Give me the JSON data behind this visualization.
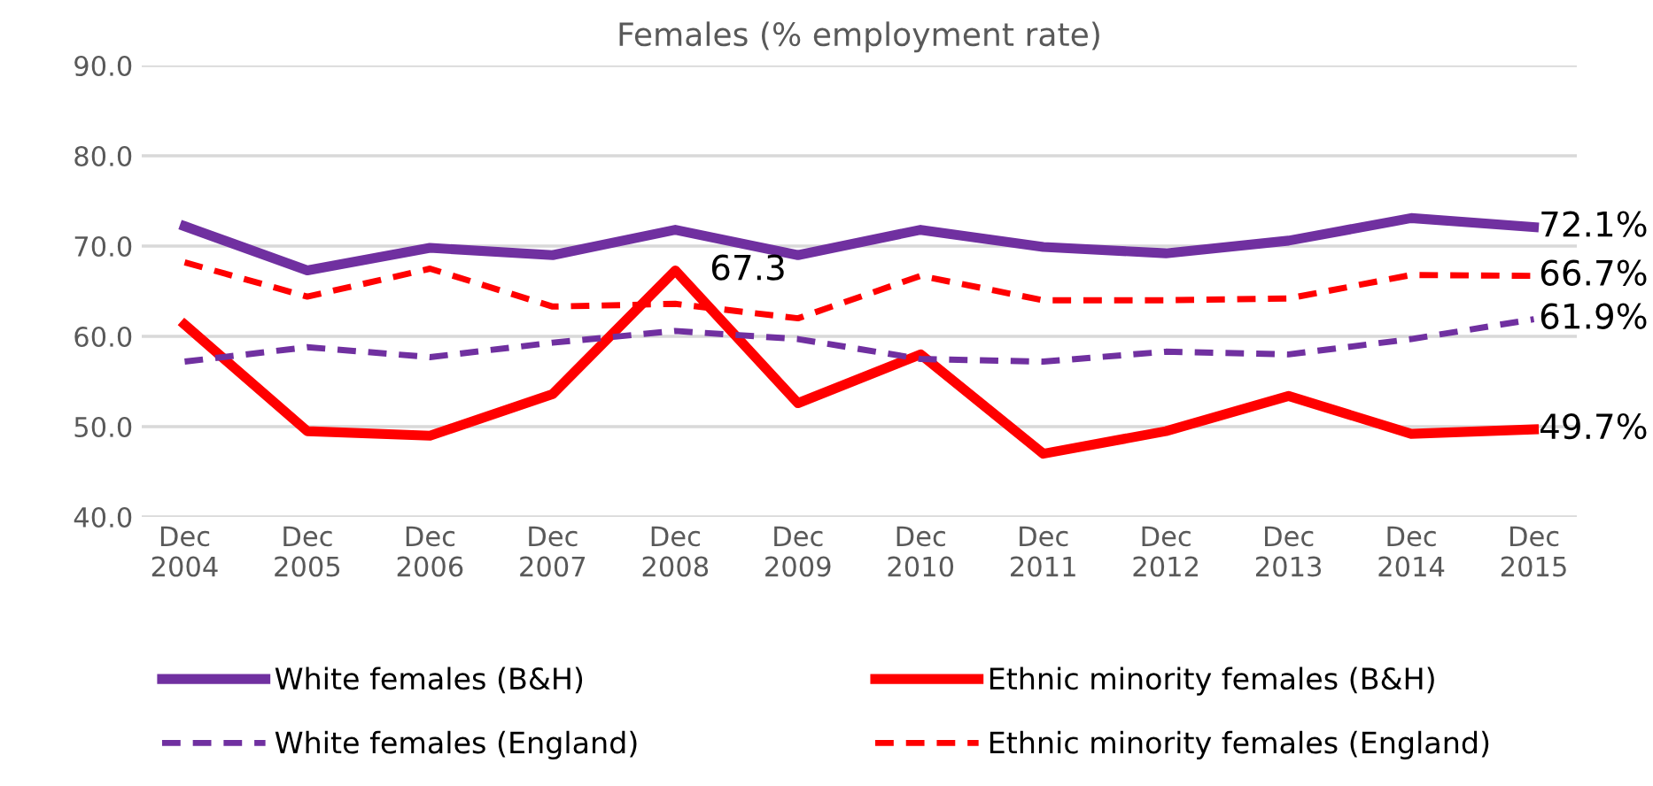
{
  "chart_data": {
    "type": "line",
    "title": "Females (% employment rate)",
    "categories": [
      "Dec\n2004",
      "Dec\n2005",
      "Dec\n2006",
      "Dec\n2007",
      "Dec\n2008",
      "Dec\n2009",
      "Dec\n2010",
      "Dec\n2011",
      "Dec\n2012",
      "Dec\n2013",
      "Dec\n2014",
      "Dec\n2015"
    ],
    "series": [
      {
        "name": "White females (B&H)",
        "color": "#7030a0",
        "line_style": "solid",
        "values": [
          72.2,
          67.3,
          69.8,
          69.0,
          71.8,
          69.0,
          71.8,
          69.9,
          69.2,
          70.6,
          73.1,
          72.1
        ],
        "value_labels": [
          null,
          null,
          null,
          null,
          null,
          null,
          null,
          null,
          null,
          null,
          null,
          "72.1%"
        ]
      },
      {
        "name": "Ethnic minority females (B&H)",
        "color": "#ff0000",
        "line_style": "solid",
        "values": [
          61.3,
          49.5,
          49.0,
          53.6,
          67.3,
          52.6,
          58.0,
          47.0,
          49.5,
          53.4,
          49.2,
          49.7
        ],
        "value_labels": [
          null,
          null,
          null,
          null,
          "67.3",
          null,
          null,
          null,
          null,
          null,
          null,
          "49.7%"
        ]
      },
      {
        "name": "White females (England)",
        "color": "#7030a0",
        "line_style": "dashed",
        "values": [
          57.2,
          58.8,
          57.7,
          59.3,
          60.6,
          59.7,
          57.5,
          57.2,
          58.3,
          58.0,
          59.7,
          61.9
        ],
        "value_labels": [
          null,
          null,
          null,
          null,
          null,
          null,
          null,
          null,
          null,
          null,
          null,
          "61.9%"
        ]
      },
      {
        "name": "Ethnic minority females (England)",
        "color": "#ff0000",
        "line_style": "dashed",
        "values": [
          68.2,
          64.4,
          67.5,
          63.3,
          63.6,
          62.0,
          66.7,
          64.0,
          64.0,
          64.2,
          66.8,
          66.7
        ],
        "value_labels": [
          null,
          null,
          null,
          null,
          null,
          null,
          null,
          null,
          null,
          null,
          null,
          "66.7%"
        ]
      }
    ],
    "ylim": [
      40,
      90
    ],
    "yticks": [
      {
        "value": 40,
        "label": "40.0"
      },
      {
        "value": 50,
        "label": "50.0"
      },
      {
        "value": 60,
        "label": "60.0"
      },
      {
        "value": 70,
        "label": "70.0"
      },
      {
        "value": 80,
        "label": "80.0"
      },
      {
        "value": 90,
        "label": "90.0"
      }
    ],
    "grid": "y",
    "legend": "bottom",
    "marker": "none"
  }
}
